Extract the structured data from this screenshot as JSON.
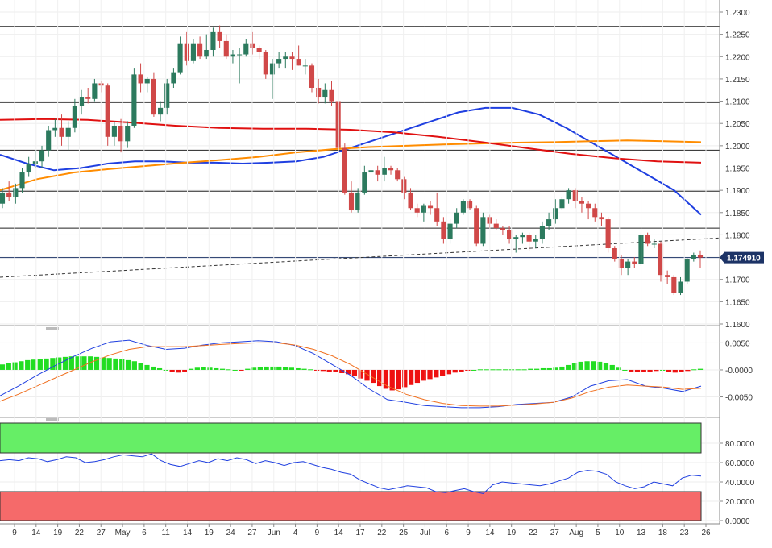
{
  "chart_data": [
    {
      "type": "candlestick",
      "pane": "price",
      "yticks": [
        "1.2300",
        "1.2250",
        "1.2200",
        "1.2150",
        "1.2100",
        "1.2050",
        "1.2000",
        "1.1950",
        "1.1900",
        "1.1850",
        "1.1800",
        "1.1750",
        "1.1700",
        "1.1650",
        "1.1600"
      ],
      "ylim": [
        1.16,
        1.2317
      ],
      "last_price_label": "1.174910",
      "last_price": 1.17491,
      "horizontal_levels": [
        1.2268,
        1.2097,
        1.199,
        1.1898,
        1.1815,
        1.1749
      ],
      "trendline": {
        "start": 1.1705,
        "end": 1.1793
      },
      "series": [
        {
          "kind": "ma",
          "color": "#1f3fe0",
          "values": [
            1.198,
            1.196,
            1.1945,
            1.195,
            1.196,
            1.1965,
            1.1965,
            1.1962,
            1.1962,
            1.196,
            1.1962,
            1.1965,
            1.1975,
            1.1995,
            1.2015,
            1.2035,
            1.2055,
            1.2075,
            1.2085,
            1.2085,
            1.207,
            1.204,
            1.2005,
            1.197,
            1.1935,
            1.19,
            1.1845
          ]
        },
        {
          "kind": "ma",
          "color": "#ff8c00",
          "values": [
            1.19,
            1.1925,
            1.194,
            1.1948,
            1.1955,
            1.1962,
            1.1968,
            1.1975,
            1.1985,
            1.1992,
            1.1997,
            1.2,
            1.2003,
            1.2005,
            1.2007,
            1.2008,
            1.201,
            1.2012,
            1.201,
            1.2008
          ]
        },
        {
          "kind": "ma",
          "color": "#e01010",
          "values": [
            1.2058,
            1.206,
            1.2058,
            1.2052,
            1.2045,
            1.204,
            1.2038,
            1.2038,
            1.2036,
            1.203,
            1.202,
            1.2008,
            1.1995,
            1.1982,
            1.1972,
            1.1965,
            1.1962
          ]
        }
      ],
      "candles": [
        [
          1.187,
          1.1905,
          1.186,
          1.1895
        ],
        [
          1.1895,
          1.192,
          1.1875,
          1.1885
        ],
        [
          1.1885,
          1.1915,
          1.187,
          1.1905
        ],
        [
          1.1905,
          1.195,
          1.1895,
          1.194
        ],
        [
          1.194,
          1.1975,
          1.193,
          1.196
        ],
        [
          1.196,
          1.199,
          1.195,
          1.1965
        ],
        [
          1.1965,
          1.2,
          1.195,
          1.199
        ],
        [
          1.199,
          1.2045,
          1.1975,
          1.2035
        ],
        [
          1.2035,
          1.206,
          1.202,
          1.204
        ],
        [
          1.204,
          1.207,
          1.2,
          1.202
        ],
        [
          1.202,
          1.2055,
          1.199,
          1.204
        ],
        [
          1.204,
          1.2105,
          1.203,
          1.209
        ],
        [
          1.209,
          1.2125,
          1.207,
          1.211
        ],
        [
          1.211,
          1.213,
          1.2095,
          1.2105
        ],
        [
          1.2105,
          1.215,
          1.21,
          1.214
        ],
        [
          1.214,
          1.2145,
          1.212,
          1.2135
        ],
        [
          1.2135,
          1.214,
          1.2,
          1.202
        ],
        [
          1.202,
          1.2055,
          1.2,
          1.2045
        ],
        [
          1.2045,
          1.206,
          1.1985,
          1.201
        ],
        [
          1.201,
          1.2055,
          1.1995,
          1.2045
        ],
        [
          1.2045,
          1.2175,
          1.204,
          1.216
        ],
        [
          1.216,
          1.2185,
          1.212,
          1.214
        ],
        [
          1.214,
          1.2155,
          1.212,
          1.215
        ],
        [
          1.215,
          1.2165,
          1.2065,
          1.207
        ],
        [
          1.207,
          1.21,
          1.2055,
          1.2085
        ],
        [
          1.2085,
          1.215,
          1.207,
          1.214
        ],
        [
          1.214,
          1.2175,
          1.213,
          1.2165
        ],
        [
          1.2165,
          1.2245,
          1.216,
          1.223
        ],
        [
          1.223,
          1.2255,
          1.218,
          1.219
        ],
        [
          1.219,
          1.224,
          1.2185,
          1.223
        ],
        [
          1.223,
          1.2245,
          1.2195,
          1.22
        ],
        [
          1.22,
          1.225,
          1.2195,
          1.2215
        ],
        [
          1.2215,
          1.2265,
          1.22,
          1.2255
        ],
        [
          1.2255,
          1.227,
          1.222,
          1.2235
        ],
        [
          1.2235,
          1.225,
          1.2195,
          1.22
        ],
        [
          1.22,
          1.2215,
          1.2185,
          1.2205
        ],
        [
          1.2205,
          1.222,
          1.214,
          1.2205
        ],
        [
          1.2205,
          1.224,
          1.22,
          1.223
        ],
        [
          1.223,
          1.2255,
          1.2205,
          1.222
        ],
        [
          1.222,
          1.2225,
          1.2195,
          1.221
        ],
        [
          1.221,
          1.2215,
          1.215,
          1.216
        ],
        [
          1.216,
          1.2195,
          1.2105,
          1.2185
        ],
        [
          1.2185,
          1.221,
          1.2175,
          1.2195
        ],
        [
          1.2195,
          1.221,
          1.2175,
          1.22
        ],
        [
          1.22,
          1.221,
          1.217,
          1.2195
        ],
        [
          1.2195,
          1.2225,
          1.218,
          1.218
        ],
        [
          1.218,
          1.2195,
          1.216,
          1.218
        ],
        [
          1.218,
          1.2185,
          1.212,
          1.213
        ],
        [
          1.213,
          1.215,
          1.2095,
          1.211
        ],
        [
          1.211,
          1.214,
          1.2095,
          1.2125
        ],
        [
          1.2125,
          1.2145,
          1.209,
          1.21
        ],
        [
          1.21,
          1.2115,
          1.1985,
          1.1995
        ],
        [
          1.1995,
          1.2005,
          1.189,
          1.1895
        ],
        [
          1.1895,
          1.192,
          1.185,
          1.1855
        ],
        [
          1.1855,
          1.1905,
          1.185,
          1.1895
        ],
        [
          1.1895,
          1.1955,
          1.189,
          1.194
        ],
        [
          1.194,
          1.195,
          1.1925,
          1.1945
        ],
        [
          1.1945,
          1.1955,
          1.192,
          1.1935
        ],
        [
          1.1935,
          1.1975,
          1.192,
          1.195
        ],
        [
          1.195,
          1.1955,
          1.1935,
          1.1945
        ],
        [
          1.1945,
          1.195,
          1.192,
          1.1925
        ],
        [
          1.1925,
          1.193,
          1.188,
          1.1895
        ],
        [
          1.1895,
          1.1905,
          1.1855,
          1.186
        ],
        [
          1.186,
          1.187,
          1.184,
          1.185
        ],
        [
          1.185,
          1.187,
          1.183,
          1.1865
        ],
        [
          1.1865,
          1.1875,
          1.1845,
          1.186
        ],
        [
          1.186,
          1.1895,
          1.182,
          1.183
        ],
        [
          1.183,
          1.184,
          1.178,
          1.179
        ],
        [
          1.179,
          1.1835,
          1.178,
          1.1825
        ],
        [
          1.1825,
          1.186,
          1.1815,
          1.185
        ],
        [
          1.185,
          1.188,
          1.1845,
          1.1875
        ],
        [
          1.1875,
          1.188,
          1.1855,
          1.186
        ],
        [
          1.186,
          1.1865,
          1.1775,
          1.178
        ],
        [
          1.178,
          1.185,
          1.1775,
          1.184
        ],
        [
          1.184,
          1.1845,
          1.1815,
          1.1825
        ],
        [
          1.1825,
          1.1835,
          1.181,
          1.1815
        ],
        [
          1.1815,
          1.182,
          1.18,
          1.181
        ],
        [
          1.181,
          1.182,
          1.178,
          1.179
        ],
        [
          1.179,
          1.18,
          1.176,
          1.1795
        ],
        [
          1.1795,
          1.1805,
          1.178,
          1.18
        ],
        [
          1.18,
          1.1805,
          1.1765,
          1.1785
        ],
        [
          1.1785,
          1.18,
          1.177,
          1.179
        ],
        [
          1.179,
          1.183,
          1.178,
          1.182
        ],
        [
          1.182,
          1.185,
          1.181,
          1.1835
        ],
        [
          1.1835,
          1.188,
          1.1825,
          1.186
        ],
        [
          1.186,
          1.1885,
          1.1855,
          1.188
        ],
        [
          1.188,
          1.1905,
          1.187,
          1.19
        ],
        [
          1.19,
          1.1905,
          1.186,
          1.1875
        ],
        [
          1.1875,
          1.1885,
          1.185,
          1.187
        ],
        [
          1.187,
          1.1875,
          1.1835,
          1.186
        ],
        [
          1.186,
          1.187,
          1.183,
          1.184
        ],
        [
          1.184,
          1.185,
          1.182,
          1.1835
        ],
        [
          1.1835,
          1.184,
          1.176,
          1.177
        ],
        [
          1.177,
          1.1775,
          1.174,
          1.1745
        ],
        [
          1.1745,
          1.1755,
          1.171,
          1.1725
        ],
        [
          1.1725,
          1.1745,
          1.171,
          1.174
        ],
        [
          1.174,
          1.175,
          1.1725,
          1.1735
        ],
        [
          1.1735,
          1.1805,
          1.173,
          1.18
        ],
        [
          1.18,
          1.1805,
          1.1775,
          1.178
        ],
        [
          1.178,
          1.179,
          1.177,
          1.178
        ],
        [
          1.178,
          1.1785,
          1.1695,
          1.171
        ],
        [
          1.171,
          1.172,
          1.169,
          1.1705
        ],
        [
          1.1705,
          1.171,
          1.1665,
          1.167
        ],
        [
          1.167,
          1.1705,
          1.1665,
          1.1695
        ],
        [
          1.1695,
          1.175,
          1.169,
          1.1745
        ],
        [
          1.1745,
          1.176,
          1.174,
          1.1755
        ],
        [
          1.1755,
          1.1765,
          1.1725,
          1.1749
        ]
      ]
    },
    {
      "type": "histogram+line",
      "pane": "macd",
      "yticks": [
        "0.0050",
        "-0.0000",
        "-0.0050"
      ],
      "ylim": [
        -0.0085,
        0.007
      ],
      "histogram": [
        0.001,
        0.0012,
        0.0014,
        0.0016,
        0.0018,
        0.0019,
        0.002,
        0.0021,
        0.0022,
        0.0023,
        0.0024,
        0.0025,
        0.0025,
        0.0025,
        0.0025,
        0.0024,
        0.0023,
        0.0022,
        0.0021,
        0.002,
        0.0018,
        0.0016,
        0.0013,
        0.0009,
        0.0006,
        0.0003,
        0.0,
        -0.0004,
        -0.0005,
        -0.0003,
        0.0002,
        0.0004,
        0.0005,
        0.0004,
        0.0003,
        0.0002,
        0.0001,
        0.0,
        -0.0001,
        0.0002,
        0.0004,
        0.0005,
        0.0006,
        0.0006,
        0.0006,
        0.0005,
        0.0004,
        0.0003,
        0.0002,
        0.0001,
        -0.0001,
        -0.0002,
        -0.0003,
        -0.0004,
        -0.0006,
        -0.0008,
        -0.0012,
        -0.0016,
        -0.002,
        -0.0024,
        -0.003,
        -0.0035,
        -0.0038,
        -0.0036,
        -0.0032,
        -0.0028,
        -0.0024,
        -0.002,
        -0.0017,
        -0.0014,
        -0.0011,
        -0.0008,
        -0.0005,
        -0.0003,
        -0.0001,
        0.0,
        0.0001,
        0.0001,
        0.0001,
        0.0001,
        0.0001,
        0.0001,
        0.0001,
        0.0001,
        0.0002,
        0.0002,
        0.0003,
        0.0003,
        0.0004,
        0.0006,
        0.0009,
        0.0012,
        0.0015,
        0.0016,
        0.0016,
        0.0015,
        0.0013,
        0.0009,
        0.0004,
        0.0,
        -0.0003,
        -0.0004,
        -0.0004,
        -0.0003,
        -0.0002,
        0.0,
        -0.0004,
        -0.0005,
        -0.0004,
        -0.0002,
        0.0001,
        0.0002
      ],
      "series": [
        {
          "color": "#2040e0",
          "values": [
            -0.0048,
            -0.003,
            -0.001,
            0.0008,
            0.0025,
            0.004,
            0.0052,
            0.0055,
            0.0045,
            0.0038,
            0.004,
            0.0046,
            0.005,
            0.0052,
            0.0054,
            0.0052,
            0.0045,
            0.003,
            0.001,
            -0.001,
            -0.0035,
            -0.0055,
            -0.006,
            -0.0066,
            -0.0068,
            -0.007,
            -0.007,
            -0.0068,
            -0.0064,
            -0.0062,
            -0.006,
            -0.005,
            -0.003,
            -0.002,
            -0.0018,
            -0.003,
            -0.0034,
            -0.004,
            -0.003
          ]
        },
        {
          "color": "#f07020",
          "values": [
            -0.0058,
            -0.0045,
            -0.003,
            -0.0015,
            0.0,
            0.0015,
            0.0028,
            0.0038,
            0.0043,
            0.0043,
            0.0043,
            0.0045,
            0.0047,
            0.0049,
            0.005,
            0.005,
            0.0046,
            0.0038,
            0.0026,
            0.001,
            -0.001,
            -0.003,
            -0.0045,
            -0.0055,
            -0.0062,
            -0.0066,
            -0.0067,
            -0.0067,
            -0.0065,
            -0.0063,
            -0.006,
            -0.0052,
            -0.004,
            -0.0032,
            -0.0028,
            -0.003,
            -0.0032,
            -0.0036,
            -0.0034
          ]
        }
      ]
    },
    {
      "type": "line",
      "pane": "rsi",
      "yticks": [
        "80.0000",
        "60.0000",
        "40.0000",
        "20.0000",
        "0.0000"
      ],
      "ylim": [
        0,
        100
      ],
      "overbought": 70,
      "oversold": 30,
      "values": [
        62,
        63,
        62,
        65,
        64,
        61,
        63,
        66,
        65,
        60,
        61,
        63,
        66,
        68,
        67,
        66,
        69,
        62,
        58,
        56,
        59,
        62,
        60,
        64,
        62,
        65,
        63,
        59,
        62,
        60,
        57,
        60,
        61,
        58,
        55,
        53,
        50,
        48,
        42,
        38,
        34,
        32,
        34,
        36,
        35,
        34,
        30,
        29,
        31,
        33,
        30,
        28,
        37,
        40,
        39,
        38,
        37,
        36,
        38,
        41,
        44,
        50,
        52,
        51,
        48,
        40,
        36,
        33,
        35,
        40,
        38,
        36,
        44,
        47,
        46
      ]
    }
  ],
  "x_axis": {
    "labels": [
      "9",
      "14",
      "19",
      "22",
      "27",
      "May",
      "6",
      "11",
      "14",
      "19",
      "24",
      "27",
      "Jun",
      "4",
      "9",
      "14",
      "17",
      "22",
      "25",
      "Jul",
      "6",
      "9",
      "14",
      "19",
      "22",
      "27",
      "Aug",
      "5",
      "10",
      "13",
      "18",
      "23",
      "26"
    ]
  }
}
